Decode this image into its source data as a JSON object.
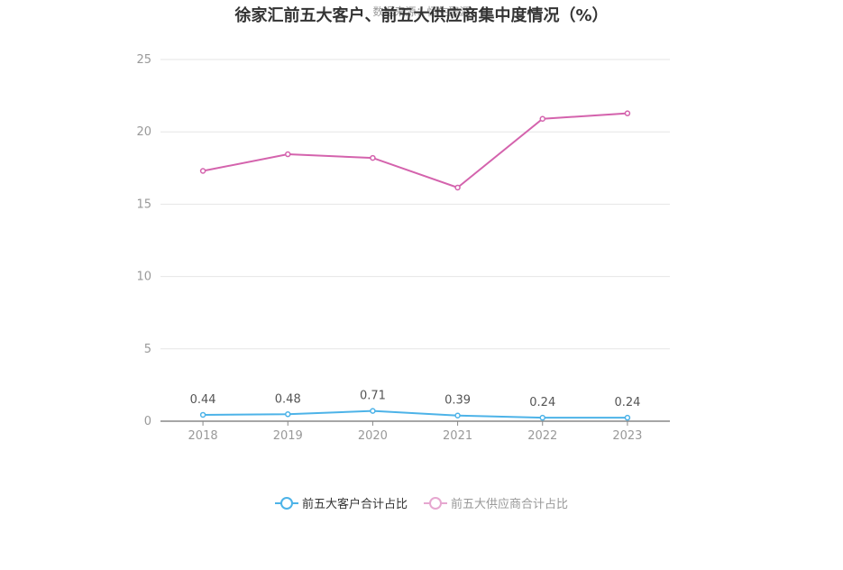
{
  "header": {
    "title": "徐家汇前五大客户、前五大供应商集中度情况（%）",
    "source": "数据来源：恒生聚源"
  },
  "chart_data": {
    "type": "line",
    "title": "徐家汇前五大客户、前五大供应商集中度情况（%）",
    "categories": [
      "2018",
      "2019",
      "2020",
      "2021",
      "2022",
      "2023"
    ],
    "yticks": [
      "0",
      "5",
      "10",
      "15",
      "20",
      "25"
    ],
    "ylim": [
      0,
      25
    ],
    "grid": true,
    "legend_position": "bottom",
    "series": [
      {
        "name": "前五大客户合计占比",
        "color": "#4db3e8",
        "values": [
          0.44,
          0.48,
          0.71,
          0.39,
          0.24,
          0.24
        ],
        "labels": [
          "0.44",
          "0.48",
          "0.71",
          "0.39",
          "0.24",
          "0.24"
        ],
        "show_labels": true
      },
      {
        "name": "前五大供应商合计占比",
        "color": "#d463ad",
        "legend_color": "#e6a7d0",
        "values": [
          17.3,
          18.45,
          18.2,
          16.15,
          20.9,
          21.28
        ],
        "show_labels": false
      }
    ]
  }
}
